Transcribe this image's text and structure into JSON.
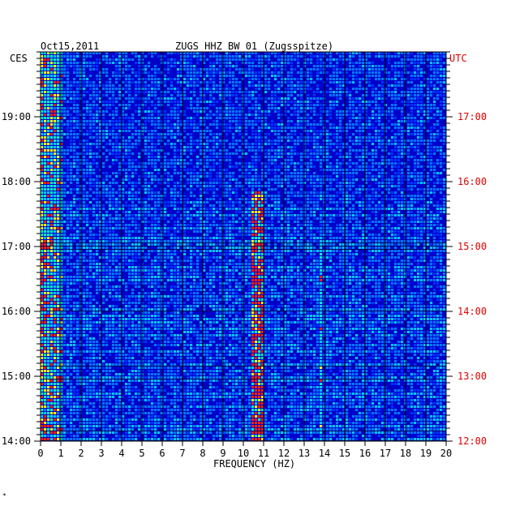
{
  "header": {
    "date": "Oct15,2011",
    "station": "ZUGS HHZ BW 01 (Zugsspitze)",
    "left_tz": "CES",
    "right_tz": "UTC",
    "corner_mark": "*"
  },
  "chart_data": {
    "type": "heatmap",
    "title": "ZUGS HHZ BW 01 (Zugsspitze)",
    "xlabel": "FREQUENCY (HZ)",
    "xlim": [
      0,
      20
    ],
    "x_ticks": [
      "0",
      "1",
      "2",
      "3",
      "4",
      "5",
      "6",
      "7",
      "8",
      "9",
      "10",
      "11",
      "12",
      "13",
      "14",
      "15",
      "16",
      "17",
      "18",
      "19",
      "20"
    ],
    "y_ticks_left": [
      "19:00",
      "18:00",
      "17:00",
      "16:00",
      "15:00",
      "14:00"
    ],
    "y_ticks_right": [
      "17:00",
      "16:00",
      "15:00",
      "14:00",
      "13:00",
      "12:00"
    ],
    "colors": {
      "background": "#0000c8",
      "low": "#0032ff",
      "mid": "#00c8ff",
      "high": "#ffff00",
      "peak": "#ff2000",
      "right_axis": "#e00000"
    },
    "grid": true,
    "features": [
      {
        "freq_range": [
          0,
          1.2
        ],
        "level": "high",
        "note": "broadband low-frequency energy across all hours"
      },
      {
        "freq_range": [
          10.4,
          11.0
        ],
        "level": "peak",
        "time_range": [
          "14:00",
          "17:40"
        ]
      },
      {
        "freq_range": [
          13.7,
          14.0
        ],
        "level": "mid",
        "time_range": [
          "14:00",
          "17:00"
        ]
      }
    ]
  }
}
